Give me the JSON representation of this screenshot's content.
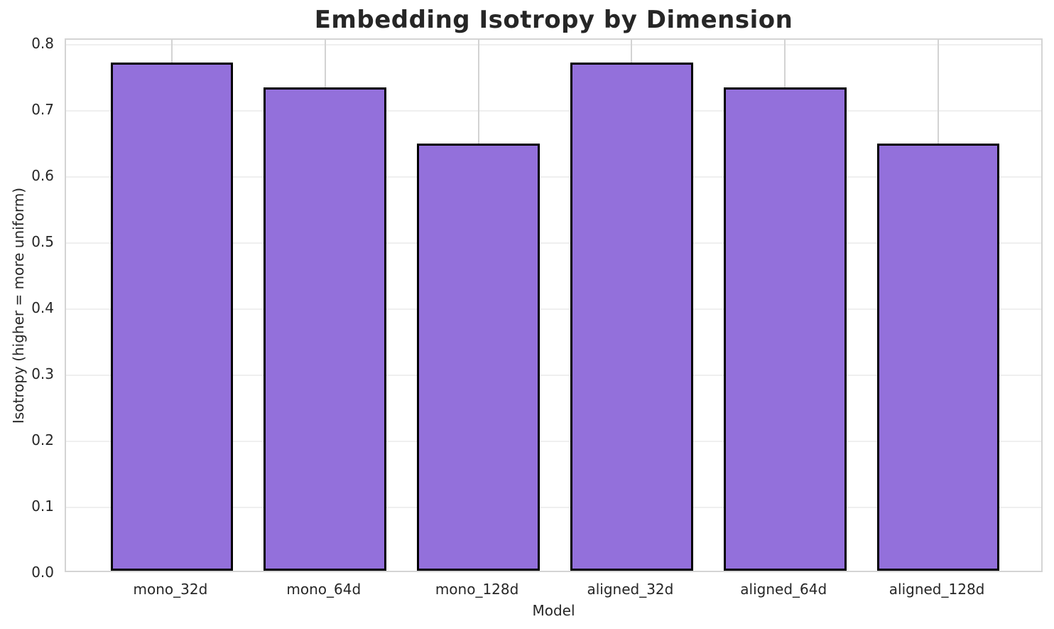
{
  "chart_data": {
    "type": "bar",
    "title": "Embedding Isotropy by Dimension",
    "xlabel": "Model",
    "ylabel": "Isotropy (higher = more uniform)",
    "categories": [
      "mono_32d",
      "mono_64d",
      "mono_128d",
      "aligned_32d",
      "aligned_64d",
      "aligned_128d"
    ],
    "values": [
      0.769,
      0.732,
      0.647,
      0.769,
      0.732,
      0.647
    ],
    "yticks": [
      0.0,
      0.1,
      0.2,
      0.3,
      0.4,
      0.5,
      0.6,
      0.7,
      0.8
    ],
    "ytick_labels": [
      "0.0",
      "0.1",
      "0.2",
      "0.3",
      "0.4",
      "0.5",
      "0.6",
      "0.7",
      "0.8"
    ],
    "ylim": [
      0,
      0.808
    ],
    "xlim": [
      -0.69,
      5.69
    ],
    "bar_width": 0.8,
    "grid": true,
    "legend": "none",
    "colors": {
      "bar_fill": "#9370DB",
      "bar_edge": "#000000",
      "hgrid_line": "#efefef",
      "vgrid_line": "#d3d3d3",
      "spine": "#d4d4d4",
      "text": "#262626"
    }
  }
}
